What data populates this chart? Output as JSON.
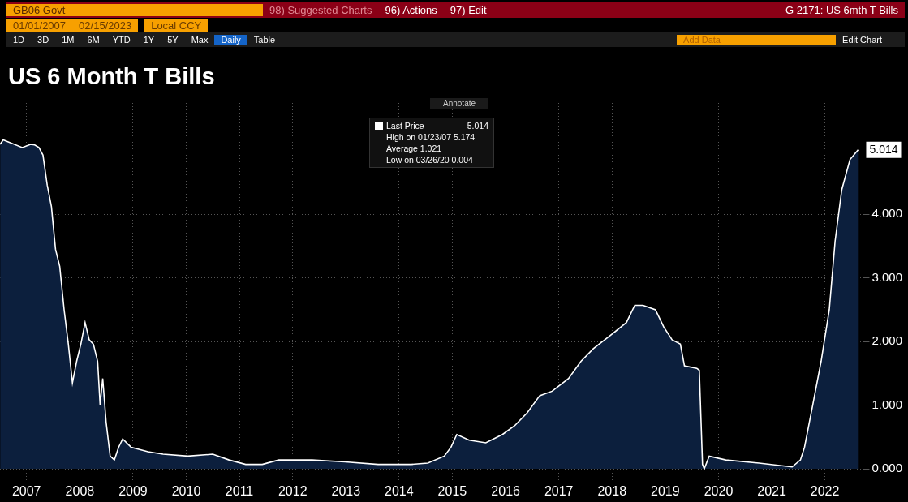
{
  "chart_data": {
    "type": "area",
    "title": "US 6 Month T Bills",
    "x": [
      "2007-01-02",
      "2007-01-23",
      "2007-06-03",
      "2007-07-30",
      "2007-08-27",
      "2007-09-25",
      "2007-10-23",
      "2007-11-21",
      "2007-12-20",
      "2008-01-17",
      "2008-02-15",
      "2008-03-16",
      "2008-04-14",
      "2008-05-12",
      "2008-06-10",
      "2008-07-09",
      "2008-08-07",
      "2008-09-04",
      "2008-10-03",
      "2008-11-01",
      "2008-11-18",
      "2008-12-06",
      "2008-12-29",
      "2009-01-26",
      "2009-02-24",
      "2009-03-25",
      "2009-04-22",
      "2009-06-19",
      "2009-10-13",
      "2010-01-24",
      "2010-07-13",
      "2010-12-31",
      "2011-04-22",
      "2011-08-14",
      "2011-12-06",
      "2012-03-28",
      "2012-11-12",
      "2013-06-27",
      "2014-02-08",
      "2014-09-23",
      "2015-01-15",
      "2015-05-08",
      "2015-06-23",
      "2015-08-02",
      "2015-10-26",
      "2016-02-17",
      "2016-06-10",
      "2016-09-03",
      "2016-11-27",
      "2017-02-21",
      "2017-05-17",
      "2017-09-07",
      "2017-12-01",
      "2018-02-24",
      "2018-06-17",
      "2018-10-09",
      "2018-12-05",
      "2019-01-31",
      "2019-04-26",
      "2019-06-22",
      "2019-08-18",
      "2019-10-14",
      "2019-11-11",
      "2020-02-04",
      "2020-02-21",
      "2020-03-14",
      "2020-03-26",
      "2020-04-29",
      "2020-08-21",
      "2021-04-06",
      "2021-11-19",
      "2022-01-15",
      "2022-02-12",
      "2022-04-10",
      "2022-06-06",
      "2022-08-01",
      "2022-09-10",
      "2022-10-26",
      "2022-12-21",
      "2023-02-15"
    ],
    "series": [
      {
        "name": "Last Price",
        "color": "#ffffff",
        "values": [
          5.1,
          5.17,
          5.05,
          5.1,
          5.09,
          5.05,
          4.93,
          4.46,
          4.12,
          3.45,
          3.18,
          2.5,
          1.96,
          1.35,
          1.69,
          1.96,
          2.3,
          2.03,
          1.96,
          1.69,
          1.01,
          1.42,
          0.74,
          0.2,
          0.14,
          0.34,
          0.47,
          0.34,
          0.27,
          0.23,
          0.2,
          0.23,
          0.14,
          0.07,
          0.07,
          0.14,
          0.14,
          0.11,
          0.07,
          0.07,
          0.09,
          0.2,
          0.34,
          0.54,
          0.45,
          0.41,
          0.54,
          0.68,
          0.88,
          1.15,
          1.22,
          1.42,
          1.69,
          1.89,
          2.09,
          2.3,
          2.57,
          2.57,
          2.5,
          2.23,
          2.03,
          1.96,
          1.62,
          1.58,
          1.55,
          0.07,
          0.0,
          0.2,
          0.14,
          0.09,
          0.03,
          0.14,
          0.34,
          1.01,
          1.69,
          2.5,
          3.58,
          4.39,
          4.86,
          5.014
        ],
        "value_labels": [
          null,
          null,
          null,
          null,
          null,
          null,
          null,
          null,
          null,
          null,
          null,
          null,
          null,
          null,
          null,
          null,
          null,
          null,
          null,
          null,
          null,
          null,
          null,
          null,
          null,
          null,
          null,
          null,
          null,
          null,
          null,
          null,
          null,
          null,
          null,
          null,
          null,
          null,
          null,
          null,
          null,
          null,
          null,
          null,
          null,
          null,
          null,
          null,
          null,
          null,
          null,
          null,
          null,
          null,
          null,
          null,
          null,
          null,
          null,
          null,
          null,
          null,
          null,
          null,
          null,
          null,
          null,
          null,
          null,
          null,
          null,
          null,
          null,
          null,
          null,
          null,
          null,
          null,
          null,
          "5.014"
        ]
      }
    ],
    "xlim": [
      "2007-01-01",
      "2023-03-20"
    ],
    "xticks": [
      {
        "value": "2007-07-02",
        "label": "2007"
      },
      {
        "value": "2008-07-02",
        "label": "2008"
      },
      {
        "value": "2009-07-02",
        "label": "2009"
      },
      {
        "value": "2010-07-02",
        "label": "2010"
      },
      {
        "value": "2011-07-02",
        "label": "2011"
      },
      {
        "value": "2012-07-02",
        "label": "2012"
      },
      {
        "value": "2013-07-02",
        "label": "2013"
      },
      {
        "value": "2014-07-02",
        "label": "2014"
      },
      {
        "value": "2015-07-02",
        "label": "2015"
      },
      {
        "value": "2016-07-02",
        "label": "2016"
      },
      {
        "value": "2017-07-02",
        "label": "2017"
      },
      {
        "value": "2018-07-02",
        "label": "2018"
      },
      {
        "value": "2019-07-02",
        "label": "2019"
      },
      {
        "value": "2020-07-02",
        "label": "2020"
      },
      {
        "value": "2021-07-02",
        "label": "2021"
      },
      {
        "value": "2022-07-02",
        "label": "2022"
      }
    ],
    "ylim": [
      -0.2,
      5.75
    ],
    "yticks": [
      {
        "value": 0,
        "label": "0.000"
      },
      {
        "value": 1,
        "label": "1.000"
      },
      {
        "value": 2,
        "label": "2.000"
      },
      {
        "value": 3,
        "label": "3.000"
      },
      {
        "value": 4,
        "label": "4.000"
      }
    ],
    "grid": true,
    "legend": "top",
    "annotations": [
      "GB06 Govt",
      "98) Suggested Charts",
      "96) Actions",
      "97) Edit",
      "G 2171: US 6mth T Bills",
      "01/01/2007",
      "02/15/2023",
      "Local CCY",
      "1D",
      "3D",
      "1M",
      "6M",
      "YTD",
      "1Y",
      "5Y",
      "Max",
      "Daily",
      "Table",
      "Add Data",
      "Edit Chart",
      "Annotate",
      "High on 01/23/07 5.174",
      "Average 1.021",
      "Low on 03/26/20 0.004"
    ]
  }
}
